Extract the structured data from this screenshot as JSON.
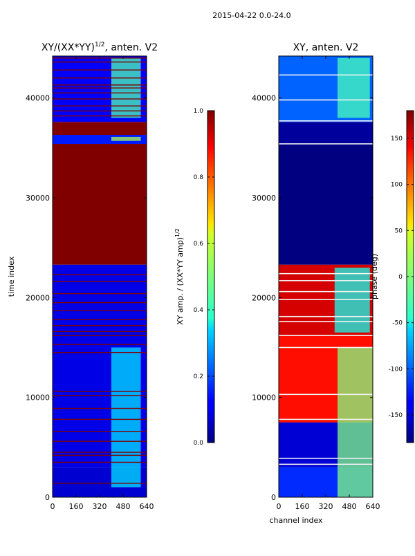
{
  "figure": {
    "suptitle": "2015-04-22 0.0-24.0"
  },
  "chart_data": [
    {
      "type": "heatmap",
      "title": "XY/(XX*YY)^{1/2}, anten. V2",
      "title_main": "XY/(XX*YY)",
      "title_sup": "1/2",
      "title_tail": ", anten. V2",
      "xlabel": "",
      "ylabel": "time index",
      "xlim": [
        0,
        640
      ],
      "ylim": [
        0,
        44200
      ],
      "xticks": [
        0,
        160,
        320,
        480,
        640
      ],
      "yticks": [
        0,
        10000,
        20000,
        30000,
        40000
      ],
      "colormap": "jet",
      "colorbar": {
        "label": "XY amp. / (XX*YY amp)^{1/2}",
        "label_main": "XY amp. / (XX*YY amp)",
        "label_sup": "1/2",
        "min": 0.0,
        "max": 1.0,
        "ticks": [
          "0.0",
          "0.2",
          "0.4",
          "0.6",
          "0.8",
          "1.0"
        ],
        "tick_values": [
          0.0,
          0.2,
          0.4,
          0.6,
          0.8,
          1.0
        ]
      },
      "bands": [
        {
          "y0": 0,
          "y1": 3000,
          "value": 0.08
        },
        {
          "y0": 3000,
          "y1": 23300,
          "value": 0.1
        },
        {
          "y0": 23300,
          "y1": 35400,
          "value": 1.0
        },
        {
          "y0": 35400,
          "y1": 36300,
          "value": 0.15
        },
        {
          "y0": 36300,
          "y1": 37600,
          "value": 1.0
        },
        {
          "y0": 37600,
          "y1": 44200,
          "value": 0.12
        }
      ],
      "bright_patches": [
        {
          "x0": 400,
          "x1": 600,
          "y0": 1000,
          "y1": 15000,
          "value": 0.35
        },
        {
          "x0": 400,
          "x1": 600,
          "y0": 35700,
          "y1": 36100,
          "value": 0.55
        },
        {
          "x0": 400,
          "x1": 600,
          "y0": 38000,
          "y1": 44000,
          "value": 0.45
        }
      ],
      "red_lines_y": [
        1400,
        3500,
        4200,
        4500,
        5600,
        6600,
        7800,
        8900,
        10200,
        10600,
        14500,
        15300,
        16200,
        16600,
        17200,
        17800,
        18700,
        19500,
        20400,
        21600,
        22300,
        38200,
        38700,
        39200,
        39900,
        40500,
        41000,
        41300,
        42000,
        42800,
        43600,
        44000
      ]
    },
    {
      "type": "heatmap",
      "title": "XY, anten. V2",
      "xlabel": "channel index",
      "ylabel": "",
      "xlim": [
        0,
        640
      ],
      "ylim": [
        0,
        44200
      ],
      "xticks": [
        0,
        160,
        320,
        480,
        640
      ],
      "yticks": [
        0,
        10000,
        20000,
        30000,
        40000
      ],
      "colormap": "jet",
      "colorbar": {
        "label": "phase (deg)",
        "min": -180,
        "max": 180,
        "ticks": [
          "-150",
          "-100",
          "-50",
          "0",
          "50",
          "100",
          "150"
        ],
        "tick_values": [
          -150,
          -100,
          -50,
          0,
          50,
          100,
          150
        ]
      },
      "bands": [
        {
          "y0": 0,
          "y1": 3000,
          "value": -120
        },
        {
          "y0": 3000,
          "y1": 7500,
          "value": -150
        },
        {
          "y0": 7500,
          "y1": 16200,
          "value": 130
        },
        {
          "y0": 16200,
          "y1": 23300,
          "value": 150
        },
        {
          "y0": 23300,
          "y1": 35400,
          "value": -180
        },
        {
          "y0": 35400,
          "y1": 37600,
          "value": -170
        },
        {
          "y0": 37600,
          "y1": 44200,
          "value": -100
        }
      ],
      "bright_patches": [
        {
          "x0": 400,
          "x1": 640,
          "y0": 0,
          "y1": 15000,
          "value": 0
        },
        {
          "x0": 380,
          "x1": 620,
          "y0": 16500,
          "y1": 23000,
          "value": -40
        },
        {
          "x0": 400,
          "x1": 620,
          "y0": 38000,
          "y1": 44000,
          "value": -20
        }
      ],
      "white_lines_y": [
        3300,
        3900,
        7800,
        10300,
        15000,
        16200,
        17600,
        18100,
        19800,
        20600,
        21700,
        22400,
        35400,
        37700,
        39800,
        42300
      ]
    }
  ]
}
